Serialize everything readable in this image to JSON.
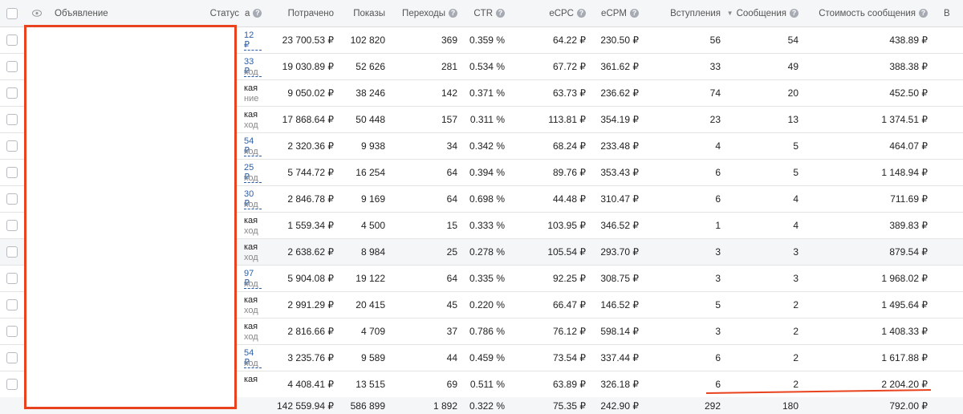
{
  "header": {
    "ad": "Объявление",
    "status": "Статус",
    "budget_frag": "а",
    "spent": "Потрачено",
    "impressions": "Показы",
    "clicks": "Переходы",
    "ctr": "CTR",
    "ecpc": "eCPC",
    "ecpm": "eCPM",
    "joins": "Вступления",
    "messages": "Сообщения",
    "msg_cost": "Стоимость сообщения",
    "last": "В",
    "help": "?",
    "sort_arrow": "▼"
  },
  "rows": [
    {
      "f1": "12 ₽",
      "f2": "",
      "link": true,
      "spent": "23 700.53 ₽",
      "impr": "102 820",
      "clicks": "369",
      "ctr": "0.359 %",
      "ecpc": "64.22 ₽",
      "ecpm": "230.50 ₽",
      "joins": "56",
      "msgs": "54",
      "cost": "438.89 ₽"
    },
    {
      "f1": "33 ₽",
      "f2": "ход",
      "link": true,
      "spent": "19 030.89 ₽",
      "impr": "52 626",
      "clicks": "281",
      "ctr": "0.534 %",
      "ecpc": "67.72 ₽",
      "ecpm": "361.62 ₽",
      "joins": "33",
      "msgs": "49",
      "cost": "388.38 ₽"
    },
    {
      "f1": "кая",
      "f2": "ние",
      "link": false,
      "spent": "9 050.02 ₽",
      "impr": "38 246",
      "clicks": "142",
      "ctr": "0.371 %",
      "ecpc": "63.73 ₽",
      "ecpm": "236.62 ₽",
      "joins": "74",
      "msgs": "20",
      "cost": "452.50 ₽"
    },
    {
      "f1": "кая",
      "f2": "ход",
      "link": false,
      "spent": "17 868.64 ₽",
      "impr": "50 448",
      "clicks": "157",
      "ctr": "0.311 %",
      "ecpc": "113.81 ₽",
      "ecpm": "354.19 ₽",
      "joins": "23",
      "msgs": "13",
      "cost": "1 374.51 ₽"
    },
    {
      "f1": "54 ₽",
      "f2": "ход",
      "link": true,
      "spent": "2 320.36 ₽",
      "impr": "9 938",
      "clicks": "34",
      "ctr": "0.342 %",
      "ecpc": "68.24 ₽",
      "ecpm": "233.48 ₽",
      "joins": "4",
      "msgs": "5",
      "cost": "464.07 ₽"
    },
    {
      "f1": "25 ₽",
      "f2": "ход",
      "link": true,
      "spent": "5 744.72 ₽",
      "impr": "16 254",
      "clicks": "64",
      "ctr": "0.394 %",
      "ecpc": "89.76 ₽",
      "ecpm": "353.43 ₽",
      "joins": "6",
      "msgs": "5",
      "cost": "1 148.94 ₽"
    },
    {
      "f1": "30 ₽",
      "f2": "ход",
      "link": true,
      "spent": "2 846.78 ₽",
      "impr": "9 169",
      "clicks": "64",
      "ctr": "0.698 %",
      "ecpc": "44.48 ₽",
      "ecpm": "310.47 ₽",
      "joins": "6",
      "msgs": "4",
      "cost": "711.69 ₽"
    },
    {
      "f1": "кая",
      "f2": "ход",
      "link": false,
      "spent": "1 559.34 ₽",
      "impr": "4 500",
      "clicks": "15",
      "ctr": "0.333 %",
      "ecpc": "103.95 ₽",
      "ecpm": "346.52 ₽",
      "joins": "1",
      "msgs": "4",
      "cost": "389.83 ₽"
    },
    {
      "f1": "кая",
      "f2": "ход",
      "link": false,
      "spent": "2 638.62 ₽",
      "impr": "8 984",
      "clicks": "25",
      "ctr": "0.278 %",
      "ecpc": "105.54 ₽",
      "ecpm": "293.70 ₽",
      "joins": "3",
      "msgs": "3",
      "cost": "879.54 ₽"
    },
    {
      "f1": "97 ₽",
      "f2": "ход",
      "link": true,
      "spent": "5 904.08 ₽",
      "impr": "19 122",
      "clicks": "64",
      "ctr": "0.335 %",
      "ecpc": "92.25 ₽",
      "ecpm": "308.75 ₽",
      "joins": "3",
      "msgs": "3",
      "cost": "1 968.02 ₽"
    },
    {
      "f1": "кая",
      "f2": "ход",
      "link": false,
      "spent": "2 991.29 ₽",
      "impr": "20 415",
      "clicks": "45",
      "ctr": "0.220 %",
      "ecpc": "66.47 ₽",
      "ecpm": "146.52 ₽",
      "joins": "5",
      "msgs": "2",
      "cost": "1 495.64 ₽"
    },
    {
      "f1": "кая",
      "f2": "ход",
      "link": false,
      "spent": "2 816.66 ₽",
      "impr": "4 709",
      "clicks": "37",
      "ctr": "0.786 %",
      "ecpc": "76.12 ₽",
      "ecpm": "598.14 ₽",
      "joins": "3",
      "msgs": "2",
      "cost": "1 408.33 ₽"
    },
    {
      "f1": "54 ₽",
      "f2": "ход",
      "link": true,
      "spent": "3 235.76 ₽",
      "impr": "9 589",
      "clicks": "44",
      "ctr": "0.459 %",
      "ecpc": "73.54 ₽",
      "ecpm": "337.44 ₽",
      "joins": "6",
      "msgs": "2",
      "cost": "1 617.88 ₽"
    },
    {
      "f1": "кая",
      "f2": "",
      "link": false,
      "spent": "4 408.41 ₽",
      "impr": "13 515",
      "clicks": "69",
      "ctr": "0.511 %",
      "ecpc": "63.89 ₽",
      "ecpm": "326.18 ₽",
      "joins": "6",
      "msgs": "2",
      "cost": "2 204.20 ₽"
    }
  ],
  "totals": {
    "spent": "142 559.94 ₽",
    "impr": "586 899",
    "clicks": "1 892",
    "ctr": "0.322 %",
    "ecpc": "75.35 ₽",
    "ecpm": "242.90 ₽",
    "joins": "292",
    "msgs": "180",
    "cost": "792.00 ₽"
  },
  "colors": {
    "annotation": "#e8431e",
    "link": "#2a5fa8"
  }
}
